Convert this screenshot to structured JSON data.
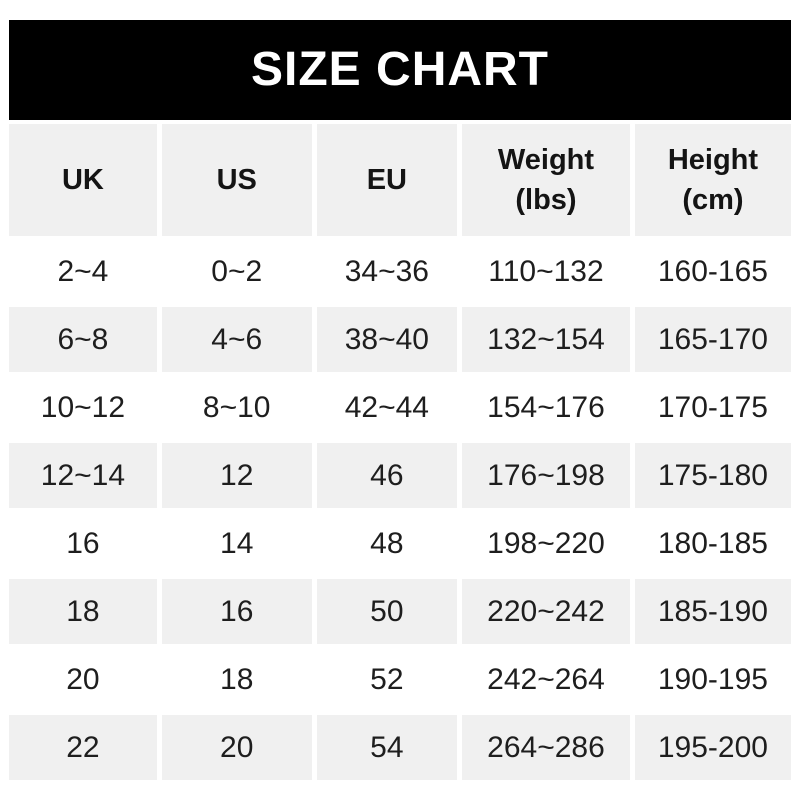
{
  "banner": {
    "title": "SIZE CHART"
  },
  "chart_data": {
    "type": "table",
    "title": "SIZE CHART",
    "columns": [
      {
        "key": "uk",
        "line1": "UK",
        "line2": ""
      },
      {
        "key": "us",
        "line1": "US",
        "line2": ""
      },
      {
        "key": "eu",
        "line1": "EU",
        "line2": ""
      },
      {
        "key": "weight-lbs",
        "line1": "Weight",
        "line2": "(lbs)"
      },
      {
        "key": "height-cm",
        "line1": "Height",
        "line2": "(cm)"
      }
    ],
    "rows": [
      [
        "2~4",
        "0~2",
        "34~36",
        "110~132",
        "160-165"
      ],
      [
        "6~8",
        "4~6",
        "38~40",
        "132~154",
        "165-170"
      ],
      [
        "10~12",
        "8~10",
        "42~44",
        "154~176",
        "170-175"
      ],
      [
        "12~14",
        "12",
        "46",
        "176~198",
        "175-180"
      ],
      [
        "16",
        "14",
        "48",
        "198~220",
        "180-185"
      ],
      [
        "18",
        "16",
        "50",
        "220~242",
        "185-190"
      ],
      [
        "20",
        "18",
        "52",
        "242~264",
        "190-195"
      ],
      [
        "22",
        "20",
        "54",
        "264~286",
        "195-200"
      ]
    ],
    "layout": {
      "stripe_pattern": "alternating rows, odd white / even light-gray",
      "grid": "white gaps between cells",
      "legend": "none"
    }
  },
  "colors": {
    "banner_bg": "#000000",
    "banner_fg": "#ffffff",
    "stripe_bg": "#f0f0f0",
    "gap_color": "#ffffff",
    "text_color": "#1e1e1e",
    "header_text_color": "#141414"
  }
}
